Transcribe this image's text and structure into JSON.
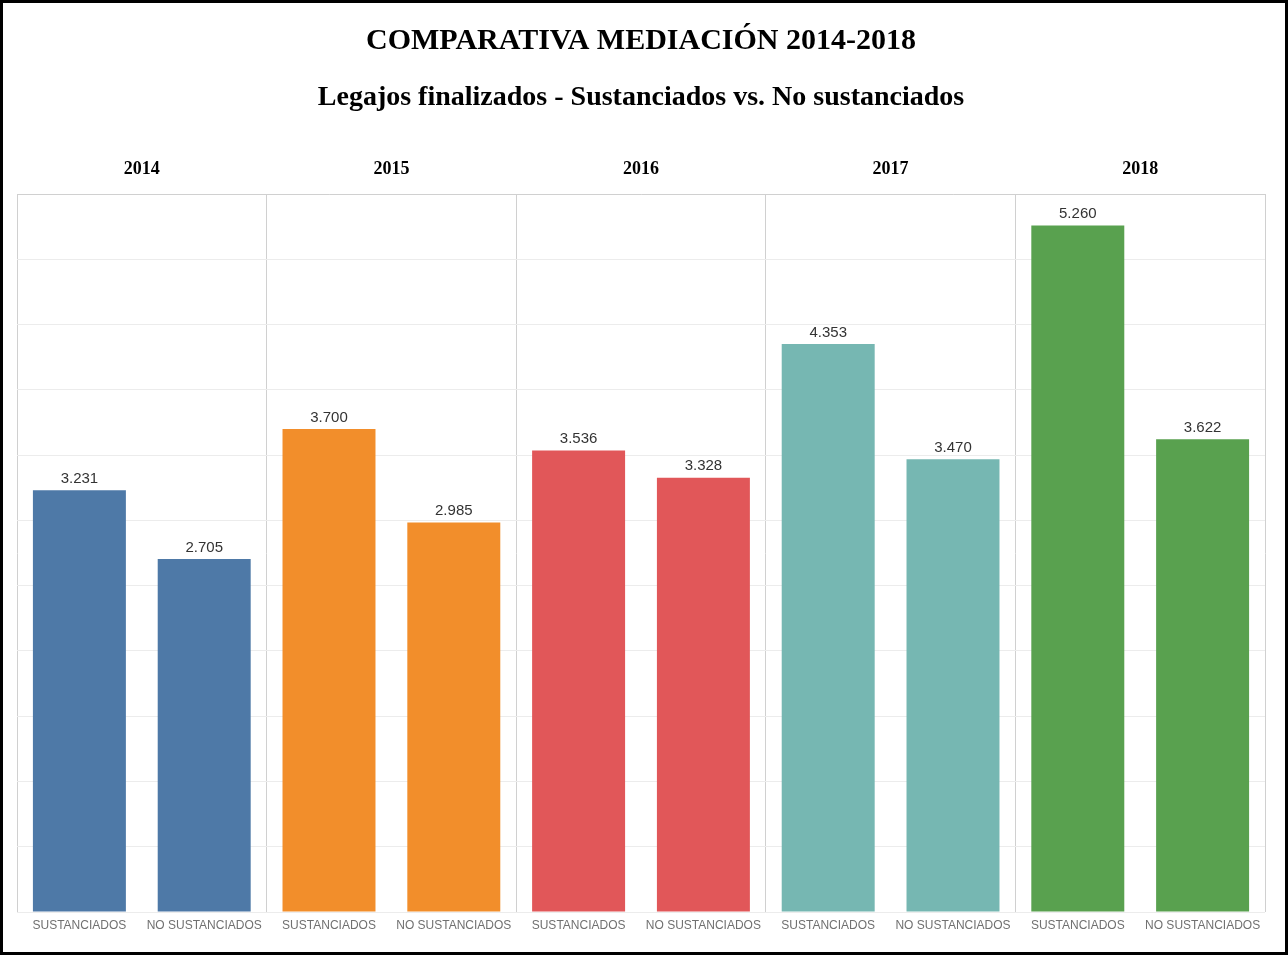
{
  "chart_data": {
    "type": "bar",
    "title": "COMPARATIVA MEDIACIÓN 2014-2018",
    "subtitle": "Legajos finalizados - Sustanciados vs. No sustanciados",
    "categories": [
      "2014",
      "2015",
      "2016",
      "2017",
      "2018"
    ],
    "series": [
      {
        "name": "SUSTANCIADOS",
        "colors": [
          "#4e79a7",
          "#f28e2b",
          "#e15759",
          "#76b7b2",
          "#59a14f"
        ],
        "values": [
          3231,
          3700,
          3536,
          4353,
          5260
        ],
        "value_labels": [
          "3.231",
          "3.700",
          "3.536",
          "4.353",
          "5.260"
        ]
      },
      {
        "name": "NO SUSTANCIADOS",
        "colors": [
          "#4e79a7",
          "#f28e2b",
          "#e15759",
          "#76b7b2",
          "#59a14f"
        ],
        "values": [
          2705,
          2985,
          3328,
          3470,
          3622
        ],
        "value_labels": [
          "2.705",
          "2.985",
          "3.328",
          "3.470",
          "3.622"
        ]
      }
    ],
    "ylim": [
      0,
      5500
    ],
    "yticks": [
      0,
      500,
      1000,
      1500,
      2000,
      2500,
      3000,
      3500,
      4000,
      4500,
      5000,
      5500
    ],
    "grid": true,
    "data_labels": true,
    "tick_labels": "x"
  }
}
